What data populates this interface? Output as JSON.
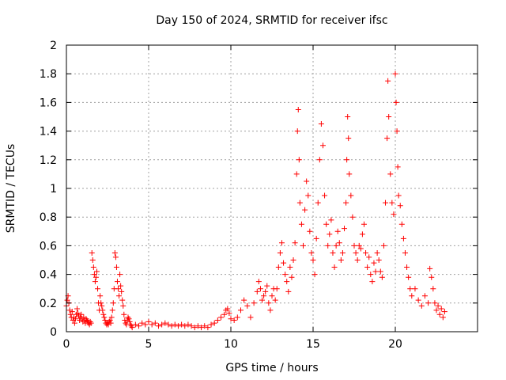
{
  "chart_data": {
    "type": "scatter",
    "title": "Day 150 of 2024, SRMTID for receiver ifsc",
    "xlabel": "GPS time / hours",
    "ylabel": "SRMTID / TECUs",
    "xlim": [
      0,
      25
    ],
    "ylim": [
      0,
      2
    ],
    "xticks": [
      0,
      5,
      10,
      15,
      20
    ],
    "yticks": [
      0,
      0.2,
      0.4,
      0.6,
      0.8,
      1,
      1.2,
      1.4,
      1.6,
      1.8,
      2
    ],
    "xtick_labels": [
      "0",
      "5",
      "10",
      "15",
      "20"
    ],
    "ytick_labels": [
      "0",
      "0.2",
      "0.4",
      "0.6",
      "0.8",
      "1",
      "1.2",
      "1.4",
      "1.6",
      "1.8",
      "2"
    ],
    "grid": true,
    "marker": "+",
    "color": "#ff0000",
    "series": [
      {
        "name": "SRMTID",
        "points": [
          [
            0.0,
            0.18
          ],
          [
            0.05,
            0.22
          ],
          [
            0.1,
            0.25
          ],
          [
            0.15,
            0.2
          ],
          [
            0.2,
            0.15
          ],
          [
            0.25,
            0.12
          ],
          [
            0.3,
            0.1
          ],
          [
            0.35,
            0.14
          ],
          [
            0.4,
            0.08
          ],
          [
            0.45,
            0.1
          ],
          [
            0.5,
            0.06
          ],
          [
            0.55,
            0.09
          ],
          [
            0.6,
            0.12
          ],
          [
            0.65,
            0.16
          ],
          [
            0.7,
            0.13
          ],
          [
            0.75,
            0.11
          ],
          [
            0.8,
            0.08
          ],
          [
            0.85,
            0.1
          ],
          [
            0.9,
            0.12
          ],
          [
            0.95,
            0.09
          ],
          [
            1.0,
            0.07
          ],
          [
            1.05,
            0.1
          ],
          [
            1.1,
            0.08
          ],
          [
            1.15,
            0.06
          ],
          [
            1.2,
            0.09
          ],
          [
            1.25,
            0.08
          ],
          [
            1.3,
            0.07
          ],
          [
            1.35,
            0.06
          ],
          [
            1.4,
            0.05
          ],
          [
            1.45,
            0.07
          ],
          [
            1.5,
            0.06
          ],
          [
            1.55,
            0.55
          ],
          [
            1.6,
            0.5
          ],
          [
            1.65,
            0.45
          ],
          [
            1.7,
            0.4
          ],
          [
            1.75,
            0.35
          ],
          [
            1.8,
            0.38
          ],
          [
            1.85,
            0.42
          ],
          [
            1.9,
            0.3
          ],
          [
            1.95,
            0.2
          ],
          [
            2.0,
            0.15
          ],
          [
            2.05,
            0.25
          ],
          [
            2.1,
            0.2
          ],
          [
            2.15,
            0.18
          ],
          [
            2.2,
            0.15
          ],
          [
            2.25,
            0.12
          ],
          [
            2.3,
            0.1
          ],
          [
            2.35,
            0.08
          ],
          [
            2.4,
            0.06
          ],
          [
            2.45,
            0.05
          ],
          [
            2.5,
            0.06
          ],
          [
            2.55,
            0.05
          ],
          [
            2.6,
            0.07
          ],
          [
            2.65,
            0.08
          ],
          [
            2.7,
            0.06
          ],
          [
            2.75,
            0.1
          ],
          [
            2.8,
            0.15
          ],
          [
            2.85,
            0.2
          ],
          [
            2.9,
            0.3
          ],
          [
            2.95,
            0.55
          ],
          [
            3.0,
            0.52
          ],
          [
            3.05,
            0.45
          ],
          [
            3.1,
            0.35
          ],
          [
            3.15,
            0.3
          ],
          [
            3.2,
            0.25
          ],
          [
            3.25,
            0.4
          ],
          [
            3.3,
            0.32
          ],
          [
            3.35,
            0.28
          ],
          [
            3.4,
            0.22
          ],
          [
            3.45,
            0.18
          ],
          [
            3.5,
            0.12
          ],
          [
            3.55,
            0.08
          ],
          [
            3.6,
            0.06
          ],
          [
            3.65,
            0.05
          ],
          [
            3.7,
            0.08
          ],
          [
            3.75,
            0.1
          ],
          [
            3.8,
            0.09
          ],
          [
            3.85,
            0.07
          ],
          [
            3.9,
            0.05
          ],
          [
            3.95,
            0.04
          ],
          [
            4.0,
            0.03
          ],
          [
            4.2,
            0.05
          ],
          [
            4.4,
            0.04
          ],
          [
            4.6,
            0.06
          ],
          [
            4.8,
            0.05
          ],
          [
            5.0,
            0.07
          ],
          [
            5.2,
            0.05
          ],
          [
            5.4,
            0.06
          ],
          [
            5.6,
            0.04
          ],
          [
            5.8,
            0.05
          ],
          [
            6.0,
            0.06
          ],
          [
            6.2,
            0.05
          ],
          [
            6.4,
            0.04
          ],
          [
            6.6,
            0.05
          ],
          [
            6.8,
            0.04
          ],
          [
            7.0,
            0.05
          ],
          [
            7.2,
            0.04
          ],
          [
            7.4,
            0.05
          ],
          [
            7.6,
            0.04
          ],
          [
            7.8,
            0.03
          ],
          [
            8.0,
            0.04
          ],
          [
            8.2,
            0.03
          ],
          [
            8.4,
            0.04
          ],
          [
            8.6,
            0.03
          ],
          [
            8.8,
            0.05
          ],
          [
            9.0,
            0.06
          ],
          [
            9.2,
            0.08
          ],
          [
            9.4,
            0.1
          ],
          [
            9.6,
            0.12
          ],
          [
            9.7,
            0.15
          ],
          [
            9.8,
            0.16
          ],
          [
            9.9,
            0.13
          ],
          [
            10.0,
            0.09
          ],
          [
            10.2,
            0.08
          ],
          [
            10.4,
            0.1
          ],
          [
            10.6,
            0.15
          ],
          [
            10.8,
            0.22
          ],
          [
            11.0,
            0.18
          ],
          [
            11.2,
            0.1
          ],
          [
            11.4,
            0.2
          ],
          [
            11.6,
            0.28
          ],
          [
            11.7,
            0.35
          ],
          [
            11.8,
            0.3
          ],
          [
            11.9,
            0.22
          ],
          [
            12.0,
            0.25
          ],
          [
            12.1,
            0.28
          ],
          [
            12.2,
            0.32
          ],
          [
            12.3,
            0.2
          ],
          [
            12.4,
            0.15
          ],
          [
            12.5,
            0.25
          ],
          [
            12.6,
            0.3
          ],
          [
            12.7,
            0.22
          ],
          [
            12.8,
            0.3
          ],
          [
            12.9,
            0.45
          ],
          [
            13.0,
            0.55
          ],
          [
            13.1,
            0.62
          ],
          [
            13.2,
            0.48
          ],
          [
            13.3,
            0.4
          ],
          [
            13.4,
            0.35
          ],
          [
            13.5,
            0.28
          ],
          [
            13.6,
            0.45
          ],
          [
            13.7,
            0.38
          ],
          [
            13.8,
            0.5
          ],
          [
            13.9,
            0.62
          ],
          [
            14.0,
            1.1
          ],
          [
            14.05,
            1.4
          ],
          [
            14.1,
            1.55
          ],
          [
            14.15,
            1.2
          ],
          [
            14.2,
            0.9
          ],
          [
            14.3,
            0.75
          ],
          [
            14.4,
            0.6
          ],
          [
            14.5,
            0.85
          ],
          [
            14.6,
            1.05
          ],
          [
            14.7,
            0.95
          ],
          [
            14.8,
            0.7
          ],
          [
            14.9,
            0.55
          ],
          [
            15.0,
            0.5
          ],
          [
            15.1,
            0.4
          ],
          [
            15.2,
            0.65
          ],
          [
            15.3,
            0.9
          ],
          [
            15.4,
            1.2
          ],
          [
            15.5,
            1.45
          ],
          [
            15.6,
            1.3
          ],
          [
            15.7,
            0.95
          ],
          [
            15.8,
            0.75
          ],
          [
            15.9,
            0.6
          ],
          [
            16.0,
            0.68
          ],
          [
            16.1,
            0.78
          ],
          [
            16.2,
            0.55
          ],
          [
            16.3,
            0.45
          ],
          [
            16.4,
            0.6
          ],
          [
            16.5,
            0.7
          ],
          [
            16.6,
            0.62
          ],
          [
            16.7,
            0.5
          ],
          [
            16.8,
            0.55
          ],
          [
            16.9,
            0.72
          ],
          [
            17.0,
            0.9
          ],
          [
            17.05,
            1.2
          ],
          [
            17.1,
            1.5
          ],
          [
            17.15,
            1.35
          ],
          [
            17.2,
            1.1
          ],
          [
            17.3,
            0.95
          ],
          [
            17.4,
            0.8
          ],
          [
            17.5,
            0.6
          ],
          [
            17.6,
            0.55
          ],
          [
            17.7,
            0.5
          ],
          [
            17.8,
            0.6
          ],
          [
            17.9,
            0.58
          ],
          [
            18.0,
            0.68
          ],
          [
            18.1,
            0.75
          ],
          [
            18.2,
            0.55
          ],
          [
            18.3,
            0.45
          ],
          [
            18.4,
            0.52
          ],
          [
            18.5,
            0.4
          ],
          [
            18.6,
            0.35
          ],
          [
            18.7,
            0.48
          ],
          [
            18.8,
            0.42
          ],
          [
            18.9,
            0.55
          ],
          [
            19.0,
            0.5
          ],
          [
            19.1,
            0.42
          ],
          [
            19.2,
            0.38
          ],
          [
            19.3,
            0.6
          ],
          [
            19.4,
            0.9
          ],
          [
            19.5,
            1.35
          ],
          [
            19.55,
            1.75
          ],
          [
            19.6,
            1.5
          ],
          [
            19.7,
            1.1
          ],
          [
            19.8,
            0.9
          ],
          [
            19.9,
            0.82
          ],
          [
            20.0,
            1.8
          ],
          [
            20.05,
            1.6
          ],
          [
            20.1,
            1.4
          ],
          [
            20.15,
            1.15
          ],
          [
            20.2,
            0.95
          ],
          [
            20.3,
            0.88
          ],
          [
            20.4,
            0.75
          ],
          [
            20.5,
            0.65
          ],
          [
            20.6,
            0.55
          ],
          [
            20.7,
            0.45
          ],
          [
            20.8,
            0.38
          ],
          [
            20.9,
            0.3
          ],
          [
            21.0,
            0.25
          ],
          [
            21.2,
            0.3
          ],
          [
            21.4,
            0.22
          ],
          [
            21.6,
            0.18
          ],
          [
            21.8,
            0.25
          ],
          [
            22.0,
            0.2
          ],
          [
            22.1,
            0.44
          ],
          [
            22.2,
            0.38
          ],
          [
            22.3,
            0.3
          ],
          [
            22.4,
            0.2
          ],
          [
            22.5,
            0.15
          ],
          [
            22.6,
            0.18
          ],
          [
            22.7,
            0.12
          ],
          [
            22.8,
            0.16
          ],
          [
            22.9,
            0.1
          ],
          [
            23.0,
            0.14
          ]
        ]
      }
    ]
  }
}
